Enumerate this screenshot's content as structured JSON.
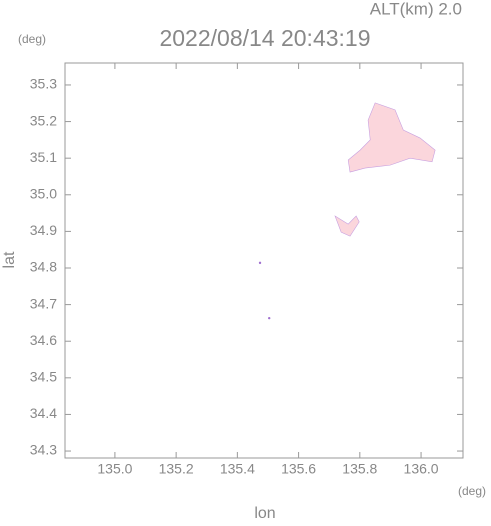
{
  "chart_data": {
    "type": "map",
    "title": "2022/08/14 20:43:19",
    "subtitle": "ALT(km) 2.0",
    "y_unit": "(deg)",
    "x_unit": "(deg)",
    "xlabel": "lon",
    "ylabel": "lat",
    "xlim": [
      134.837,
      136.137
    ],
    "ylim": [
      34.281,
      35.36
    ],
    "xticks": [
      {
        "value": 135.0,
        "label": "135.0"
      },
      135.2,
      135.4,
      135.6,
      135.8,
      {
        "value": 136.0,
        "label": "136.0"
      }
    ],
    "yticks": [
      34.3,
      34.4,
      34.5,
      34.6,
      34.7,
      34.8,
      34.9,
      {
        "value": 35.0,
        "label": "35.0"
      },
      35.1,
      35.2,
      35.3
    ],
    "color": "#fbd6dc",
    "areas": [
      {
        "x": [
          135.85,
          135.915,
          135.942,
          135.997,
          136.046,
          136.036,
          135.964,
          135.899,
          135.817,
          135.768,
          135.762,
          135.801,
          135.834,
          135.827
        ],
        "y": [
          35.251,
          35.232,
          35.177,
          35.155,
          35.122,
          35.09,
          35.1,
          35.081,
          35.073,
          35.062,
          35.095,
          35.122,
          35.15,
          35.204
        ]
      },
      {
        "x": [
          135.719,
          135.762,
          135.788,
          135.798,
          135.768,
          135.739
        ],
        "y": [
          34.942,
          34.92,
          34.942,
          34.926,
          34.887,
          34.898
        ]
      }
    ],
    "points": {
      "x": [
        135.474,
        135.504
      ],
      "y": [
        34.814,
        34.663
      ]
    }
  }
}
